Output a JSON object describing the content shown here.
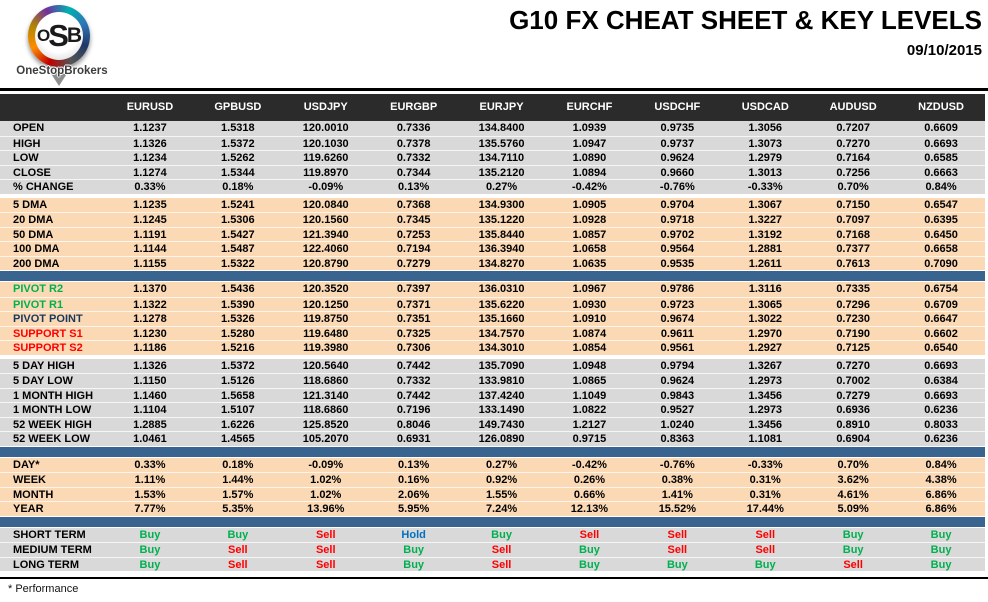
{
  "header": {
    "logo": {
      "o": "O",
      "s": "S",
      "b": "B",
      "brand": "OneStopBrokers"
    },
    "title": "G10 FX CHEAT SHEET & KEY LEVELS",
    "date": "09/10/2015"
  },
  "footnote": "* Performance",
  "colors": {
    "header_bar": "#2B2B2B",
    "gray": "#D9D9D9",
    "peach": "#FBD9B5",
    "divider": "#38648F",
    "green": "#00B050",
    "red": "#FF0000",
    "navy": "#17375D",
    "black": "#000000",
    "signal": {
      "Buy": "#00B050",
      "Sell": "#FF0000",
      "Hold": "#0070C0"
    }
  },
  "table": {
    "columns": [
      "EURUSD",
      "GPBUSD",
      "USDJPY",
      "EURGBP",
      "EURJPY",
      "EURCHF",
      "USDCHF",
      "USDCAD",
      "AUDUSD",
      "NZDUSD"
    ],
    "sections": [
      {
        "name": "ohlc-section",
        "bg": "gray",
        "after": "gap",
        "rows": [
          {
            "label": "OPEN",
            "values": [
              "1.1237",
              "1.5318",
              "120.0010",
              "0.7336",
              "134.8400",
              "1.0939",
              "0.9735",
              "1.3056",
              "0.7207",
              "0.6609"
            ]
          },
          {
            "label": "HIGH",
            "values": [
              "1.1326",
              "1.5372",
              "120.1030",
              "0.7378",
              "135.5760",
              "1.0947",
              "0.9737",
              "1.3073",
              "0.7270",
              "0.6693"
            ]
          },
          {
            "label": "LOW",
            "values": [
              "1.1234",
              "1.5262",
              "119.6260",
              "0.7332",
              "134.7110",
              "1.0890",
              "0.9624",
              "1.2979",
              "0.7164",
              "0.6585"
            ]
          },
          {
            "label": "CLOSE",
            "values": [
              "1.1274",
              "1.5344",
              "119.8970",
              "0.7344",
              "135.2120",
              "1.0894",
              "0.9660",
              "1.3013",
              "0.7256",
              "0.6663"
            ]
          },
          {
            "label": "% CHANGE",
            "values": [
              "0.33%",
              "0.18%",
              "-0.09%",
              "0.13%",
              "0.27%",
              "-0.42%",
              "-0.76%",
              "-0.33%",
              "0.70%",
              "0.84%"
            ]
          }
        ]
      },
      {
        "name": "dma-section",
        "bg": "peach",
        "after": "divider",
        "rows": [
          {
            "label": "5 DMA",
            "values": [
              "1.1235",
              "1.5241",
              "120.0840",
              "0.7368",
              "134.9300",
              "1.0905",
              "0.9704",
              "1.3067",
              "0.7150",
              "0.6547"
            ]
          },
          {
            "label": "20 DMA",
            "values": [
              "1.1245",
              "1.5306",
              "120.1560",
              "0.7345",
              "135.1220",
              "1.0928",
              "0.9718",
              "1.3227",
              "0.7097",
              "0.6395"
            ]
          },
          {
            "label": "50 DMA",
            "values": [
              "1.1191",
              "1.5427",
              "121.3940",
              "0.7253",
              "135.8440",
              "1.0857",
              "0.9702",
              "1.3192",
              "0.7168",
              "0.6450"
            ]
          },
          {
            "label": "100 DMA",
            "values": [
              "1.1144",
              "1.5487",
              "122.4060",
              "0.7194",
              "136.3940",
              "1.0658",
              "0.9564",
              "1.2881",
              "0.7377",
              "0.6658"
            ]
          },
          {
            "label": "200 DMA",
            "values": [
              "1.1155",
              "1.5322",
              "120.8790",
              "0.7279",
              "134.8270",
              "1.0635",
              "0.9535",
              "1.2611",
              "0.7613",
              "0.7090"
            ]
          }
        ]
      },
      {
        "name": "pivot-section",
        "bg": "peach",
        "after": "gap",
        "rows": [
          {
            "label": "PIVOT R2",
            "label_color": "green",
            "values": [
              "1.1370",
              "1.5436",
              "120.3520",
              "0.7397",
              "136.0310",
              "1.0967",
              "0.9786",
              "1.3116",
              "0.7335",
              "0.6754"
            ]
          },
          {
            "label": "PIVOT R1",
            "label_color": "green",
            "values": [
              "1.1322",
              "1.5390",
              "120.1250",
              "0.7371",
              "135.6220",
              "1.0930",
              "0.9723",
              "1.3065",
              "0.7296",
              "0.6709"
            ]
          },
          {
            "label": "PIVOT POINT",
            "label_color": "navy",
            "values": [
              "1.1278",
              "1.5326",
              "119.8750",
              "0.7351",
              "135.1660",
              "1.0910",
              "0.9674",
              "1.3022",
              "0.7230",
              "0.6647"
            ]
          },
          {
            "label": "SUPPORT S1",
            "label_color": "red",
            "values": [
              "1.1230",
              "1.5280",
              "119.6480",
              "0.7325",
              "134.7570",
              "1.0874",
              "0.9611",
              "1.2970",
              "0.7190",
              "0.6602"
            ]
          },
          {
            "label": "SUPPORT S2",
            "label_color": "red",
            "values": [
              "1.1186",
              "1.5216",
              "119.3980",
              "0.7306",
              "134.3010",
              "1.0854",
              "0.9561",
              "1.2927",
              "0.7125",
              "0.6540"
            ]
          }
        ]
      },
      {
        "name": "range-section",
        "bg": "gray",
        "after": "divider",
        "rows": [
          {
            "label": "5 DAY HIGH",
            "values": [
              "1.1326",
              "1.5372",
              "120.5640",
              "0.7442",
              "135.7090",
              "1.0948",
              "0.9794",
              "1.3267",
              "0.7270",
              "0.6693"
            ]
          },
          {
            "label": "5 DAY LOW",
            "values": [
              "1.1150",
              "1.5126",
              "118.6860",
              "0.7332",
              "133.9810",
              "1.0865",
              "0.9624",
              "1.2973",
              "0.7002",
              "0.6384"
            ]
          },
          {
            "label": "1 MONTH HIGH",
            "values": [
              "1.1460",
              "1.5658",
              "121.3140",
              "0.7442",
              "137.4240",
              "1.1049",
              "0.9843",
              "1.3456",
              "0.7279",
              "0.6693"
            ]
          },
          {
            "label": "1 MONTH LOW",
            "values": [
              "1.1104",
              "1.5107",
              "118.6860",
              "0.7196",
              "133.1490",
              "1.0822",
              "0.9527",
              "1.2973",
              "0.6936",
              "0.6236"
            ]
          },
          {
            "label": "52 WEEK HIGH",
            "values": [
              "1.2885",
              "1.6226",
              "125.8520",
              "0.8046",
              "149.7430",
              "1.2127",
              "1.0240",
              "1.3456",
              "0.8910",
              "0.8033"
            ]
          },
          {
            "label": "52 WEEK LOW",
            "values": [
              "1.0461",
              "1.4565",
              "105.2070",
              "0.6931",
              "126.0890",
              "0.9715",
              "0.8363",
              "1.1081",
              "0.6904",
              "0.6236"
            ]
          }
        ]
      },
      {
        "name": "performance-section",
        "bg": "peach",
        "after": "divider",
        "rows": [
          {
            "label": "DAY*",
            "values": [
              "0.33%",
              "0.18%",
              "-0.09%",
              "0.13%",
              "0.27%",
              "-0.42%",
              "-0.76%",
              "-0.33%",
              "0.70%",
              "0.84%"
            ]
          },
          {
            "label": "WEEK",
            "values": [
              "1.11%",
              "1.44%",
              "1.02%",
              "0.16%",
              "0.92%",
              "0.26%",
              "0.38%",
              "0.31%",
              "3.62%",
              "4.38%"
            ]
          },
          {
            "label": "MONTH",
            "values": [
              "1.53%",
              "1.57%",
              "1.02%",
              "2.06%",
              "1.55%",
              "0.66%",
              "1.41%",
              "0.31%",
              "4.61%",
              "6.86%"
            ]
          },
          {
            "label": "YEAR",
            "values": [
              "7.77%",
              "5.35%",
              "13.96%",
              "5.95%",
              "7.24%",
              "12.13%",
              "15.52%",
              "17.44%",
              "5.09%",
              "6.86%"
            ]
          }
        ]
      },
      {
        "name": "recommendation-section",
        "bg": "gray",
        "signals": true,
        "after": "end",
        "rows": [
          {
            "label": "SHORT TERM",
            "values": [
              "Buy",
              "Buy",
              "Sell",
              "Hold",
              "Buy",
              "Sell",
              "Sell",
              "Sell",
              "Buy",
              "Buy"
            ]
          },
          {
            "label": "MEDIUM TERM",
            "values": [
              "Buy",
              "Sell",
              "Sell",
              "Buy",
              "Sell",
              "Buy",
              "Sell",
              "Sell",
              "Buy",
              "Buy"
            ]
          },
          {
            "label": "LONG TERM",
            "values": [
              "Buy",
              "Sell",
              "Sell",
              "Buy",
              "Sell",
              "Buy",
              "Buy",
              "Buy",
              "Sell",
              "Buy"
            ]
          }
        ]
      }
    ]
  }
}
